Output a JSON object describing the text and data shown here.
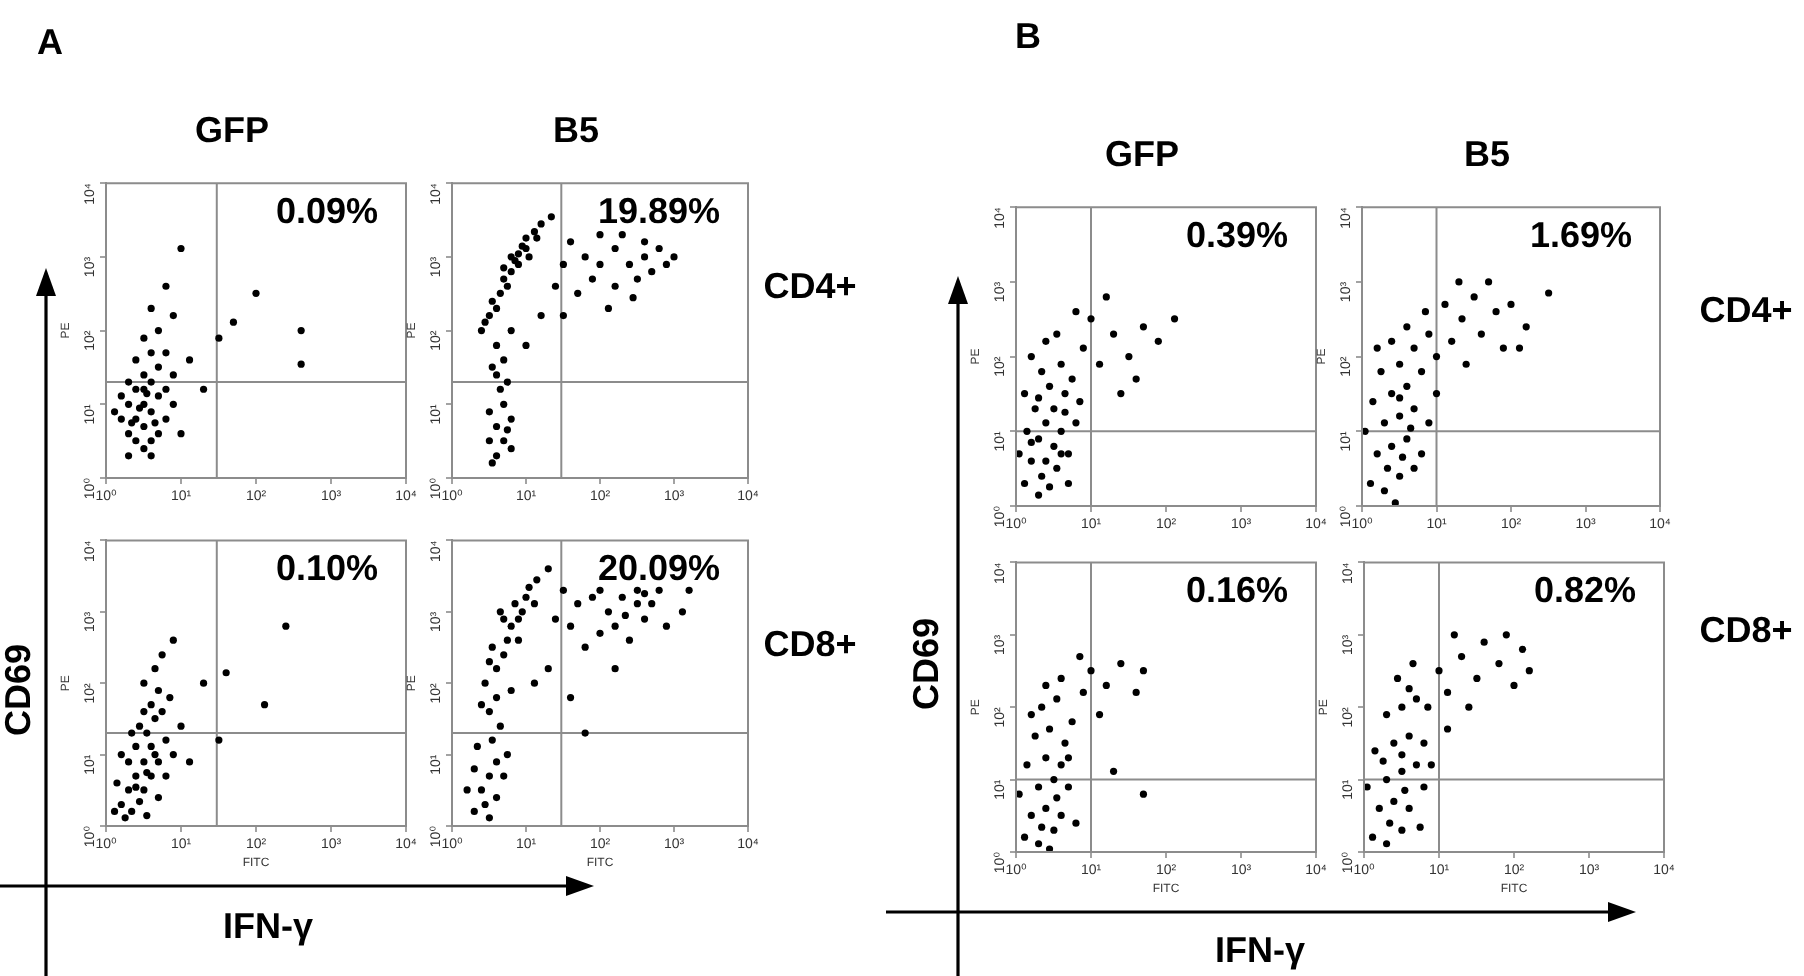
{
  "chart_data": [
    {
      "type": "scatter",
      "title": "GFP",
      "ylabel": "PE",
      "log": "xy",
      "xlim": [
        1,
        10000
      ],
      "ylim": [
        1,
        10000
      ],
      "xticks": [
        {
          "value": 1,
          "label": "10⁰"
        },
        {
          "value": 10,
          "label": "10¹"
        },
        {
          "value": 100,
          "label": "10²"
        },
        {
          "value": 1000,
          "label": "10³"
        },
        {
          "value": 10000,
          "label": "10⁴"
        }
      ],
      "yticks": [
        {
          "value": 1,
          "label": "10⁰"
        },
        {
          "value": 10,
          "label": "10¹"
        },
        {
          "value": 100,
          "label": "10²"
        },
        {
          "value": 1000,
          "label": "10³"
        },
        {
          "value": 10000,
          "label": "10⁴"
        }
      ],
      "marker": "circle",
      "color": "#000000",
      "ref_lines": [
        {
          "axis": "x",
          "value": 30,
          "color": "#8c8c8c"
        },
        {
          "axis": "y",
          "value": 20,
          "color": "#8c8c8c"
        }
      ],
      "annotations": [
        "0.09%",
        "A"
      ],
      "x": [
        2,
        2.5,
        3.2,
        4,
        5,
        2.5,
        3.2,
        2,
        4,
        6.3,
        1.6,
        3.2,
        5,
        2.5,
        4,
        2,
        3.2,
        6.3,
        7.9,
        1.3,
        1.6,
        5,
        2.5,
        4,
        3.2,
        5,
        6.3,
        2,
        4,
        7.9,
        2.8,
        3.5,
        2.2,
        4.5,
        3.2,
        4,
        7.9,
        10,
        6.3,
        13,
        20,
        10,
        100,
        50,
        400,
        400,
        32
      ],
      "values": [
        4,
        6.3,
        10,
        7.9,
        13,
        16,
        5,
        10,
        20,
        6.3,
        6.3,
        2.5,
        4,
        3.2,
        3.2,
        20,
        25,
        16,
        10,
        7.9,
        13,
        32,
        40,
        50,
        79,
        100,
        50,
        2,
        2,
        25,
        8.9,
        14,
        5.6,
        5.6,
        16,
        200,
        160,
        1300,
        400,
        40,
        16,
        4,
        320,
        130,
        100,
        35,
        79
      ]
    },
    {
      "type": "scatter",
      "title": "B5",
      "ylabel": "PE",
      "log": "xy",
      "xlim": [
        1,
        10000
      ],
      "ylim": [
        1,
        10000
      ],
      "xticks": [
        {
          "value": 1,
          "label": "10⁰"
        },
        {
          "value": 10,
          "label": "10¹"
        },
        {
          "value": 100,
          "label": "10²"
        },
        {
          "value": 1000,
          "label": "10³"
        },
        {
          "value": 10000,
          "label": "10⁴"
        }
      ],
      "yticks": [
        {
          "value": 1,
          "label": "10⁰"
        },
        {
          "value": 10,
          "label": "10¹"
        },
        {
          "value": 100,
          "label": "10²"
        },
        {
          "value": 1000,
          "label": "10³"
        },
        {
          "value": 10000,
          "label": "10⁴"
        }
      ],
      "marker": "circle",
      "color": "#000000",
      "ref_lines": [
        {
          "axis": "x",
          "value": 30,
          "color": "#8c8c8c"
        },
        {
          "axis": "y",
          "value": 20,
          "color": "#8c8c8c"
        }
      ],
      "annotations": [
        "19.89%",
        "CD4+"
      ],
      "x": [
        4,
        5,
        3.2,
        6.3,
        4,
        5,
        3.2,
        6.3,
        4.5,
        3.5,
        5.6,
        4,
        5,
        4,
        6.3,
        3.5,
        5.6,
        2.5,
        3.2,
        3.5,
        4.5,
        5,
        6.3,
        7.1,
        7.9,
        8.9,
        10,
        13,
        16,
        22,
        5.6,
        7.9,
        10,
        4,
        2.8,
        11,
        6.3,
        14,
        5,
        40,
        63,
        100,
        160,
        250,
        400,
        630,
        320,
        160,
        79,
        500,
        790,
        50,
        200,
        100,
        32,
        280,
        130,
        25,
        400,
        1000,
        16,
        10,
        32
      ],
      "values": [
        5,
        3.2,
        7.9,
        6.3,
        2,
        10,
        3.2,
        2.5,
        16,
        1.6,
        4.5,
        25,
        40,
        63,
        100,
        32,
        20,
        100,
        160,
        250,
        320,
        500,
        630,
        890,
        1100,
        1400,
        1800,
        2200,
        2800,
        3500,
        400,
        790,
        1300,
        200,
        130,
        1000,
        1000,
        1800,
        710,
        1600,
        1000,
        790,
        1300,
        790,
        1000,
        1300,
        500,
        400,
        500,
        630,
        790,
        320,
        2000,
        2000,
        790,
        280,
        200,
        400,
        1600,
        1000,
        160,
        63,
        160
      ]
    },
    {
      "type": "scatter",
      "xlabel": "FITC",
      "ylabel": "PE",
      "log": "xy",
      "xlim": [
        1,
        10000
      ],
      "ylim": [
        1,
        10000
      ],
      "xticks": [
        {
          "value": 1,
          "label": "10⁰"
        },
        {
          "value": 10,
          "label": "10¹"
        },
        {
          "value": 100,
          "label": "10²"
        },
        {
          "value": 1000,
          "label": "10³"
        },
        {
          "value": 10000,
          "label": "10⁴"
        }
      ],
      "yticks": [
        {
          "value": 1,
          "label": "10⁰"
        },
        {
          "value": 10,
          "label": "10¹"
        },
        {
          "value": 100,
          "label": "10²"
        },
        {
          "value": 1000,
          "label": "10³"
        },
        {
          "value": 10000,
          "label": "10⁴"
        }
      ],
      "marker": "circle",
      "color": "#000000",
      "ref_lines": [
        {
          "axis": "x",
          "value": 30,
          "color": "#8c8c8c"
        },
        {
          "axis": "y",
          "value": 20,
          "color": "#8c8c8c"
        }
      ],
      "annotations": [
        "0.10%",
        "CD69",
        "IFN-γ"
      ],
      "x": [
        2,
        2.5,
        3.2,
        4,
        1.6,
        2.2,
        3.2,
        4,
        5,
        2.5,
        3.5,
        4.5,
        2,
        1.4,
        1.8,
        2.8,
        5,
        6.3,
        6.3,
        4,
        3.2,
        5,
        2.8,
        1.6,
        2.2,
        7.9,
        3.5,
        1.3,
        5.6,
        3.2,
        4.5,
        5.6,
        7.1,
        2.5,
        3.5,
        4.5,
        10,
        13,
        40,
        130,
        250,
        32,
        20,
        7.9
      ],
      "values": [
        3.2,
        5,
        7.9,
        13,
        2,
        1.6,
        3.2,
        5,
        7.9,
        13,
        20,
        32,
        7.9,
        4,
        1.3,
        2.2,
        2.5,
        5,
        16,
        50,
        40,
        79,
        25,
        10,
        20,
        10,
        1.4,
        1.6,
        40,
        100,
        160,
        250,
        63,
        3.5,
        5.6,
        10,
        25,
        7.9,
        140,
        50,
        630,
        16,
        100,
        400
      ]
    },
    {
      "type": "scatter",
      "xlabel": "FITC",
      "ylabel": "PE",
      "log": "xy",
      "xlim": [
        1,
        10000
      ],
      "ylim": [
        1,
        10000
      ],
      "xticks": [
        {
          "value": 1,
          "label": "10⁰"
        },
        {
          "value": 10,
          "label": "10¹"
        },
        {
          "value": 100,
          "label": "10²"
        },
        {
          "value": 1000,
          "label": "10³"
        },
        {
          "value": 10000,
          "label": "10⁴"
        }
      ],
      "yticks": [
        {
          "value": 1,
          "label": "10⁰"
        },
        {
          "value": 10,
          "label": "10¹"
        },
        {
          "value": 100,
          "label": "10²"
        },
        {
          "value": 1000,
          "label": "10³"
        },
        {
          "value": 10000,
          "label": "10⁴"
        }
      ],
      "marker": "circle",
      "color": "#000000",
      "ref_lines": [
        {
          "axis": "x",
          "value": 30,
          "color": "#8c8c8c"
        },
        {
          "axis": "y",
          "value": 20,
          "color": "#8c8c8c"
        }
      ],
      "annotations": [
        "20.09%",
        "CD8+"
      ],
      "x": [
        2.5,
        3.2,
        4,
        2,
        2.8,
        4,
        2.2,
        3.5,
        5,
        1.6,
        3.2,
        5.6,
        2,
        4.5,
        3.2,
        4,
        2.8,
        4,
        5,
        3.5,
        5.6,
        6.3,
        7.9,
        7.1,
        10,
        11,
        14,
        20,
        8.9,
        5,
        6.3,
        2.5,
        4.5,
        13,
        7.9,
        3.2,
        32,
        50,
        79,
        130,
        200,
        320,
        400,
        500,
        630,
        320,
        160,
        100,
        63,
        250,
        790,
        1300,
        40,
        400,
        220,
        25,
        1600,
        100,
        20,
        40,
        63,
        13,
        160
      ],
      "values": [
        3.2,
        5,
        7.9,
        6.3,
        2,
        2.5,
        13,
        16,
        5,
        3.2,
        1.3,
        10,
        1.6,
        25,
        40,
        63,
        100,
        160,
        250,
        320,
        400,
        630,
        790,
        1300,
        1600,
        2200,
        2800,
        4000,
        1000,
        790,
        79,
        50,
        1000,
        1300,
        400,
        200,
        2000,
        1300,
        1600,
        1000,
        1600,
        1300,
        790,
        1300,
        2000,
        2000,
        630,
        500,
        320,
        400,
        630,
        1000,
        630,
        1800,
        890,
        790,
        2000,
        2000,
        160,
        63,
        20,
        100,
        160
      ]
    },
    {
      "type": "scatter",
      "title": "GFP",
      "ylabel": "PE",
      "log": "xy",
      "xlim": [
        1,
        10000
      ],
      "ylim": [
        1,
        10000
      ],
      "xticks": [
        {
          "value": 1,
          "label": "10⁰"
        },
        {
          "value": 10,
          "label": "10¹"
        },
        {
          "value": 100,
          "label": "10²"
        },
        {
          "value": 1000,
          "label": "10³"
        },
        {
          "value": 10000,
          "label": "10⁴"
        }
      ],
      "yticks": [
        {
          "value": 1,
          "label": "10⁰"
        },
        {
          "value": 10,
          "label": "10¹"
        },
        {
          "value": 100,
          "label": "10²"
        },
        {
          "value": 1000,
          "label": "10³"
        },
        {
          "value": 10000,
          "label": "10⁴"
        }
      ],
      "marker": "circle",
      "color": "#000000",
      "ref_lines": [
        {
          "axis": "x",
          "value": 10,
          "color": "#8c8c8c"
        },
        {
          "axis": "y",
          "value": 10,
          "color": "#8c8c8c"
        }
      ],
      "annotations": [
        "0.39%",
        "B"
      ],
      "x": [
        1.3,
        1.6,
        2,
        2.5,
        3.2,
        4,
        5,
        2.2,
        3.5,
        1.4,
        1.8,
        2.8,
        4.5,
        6.3,
        2,
        3.2,
        1.3,
        2.2,
        4,
        5.6,
        1.6,
        2.5,
        3.5,
        5,
        1.1,
        7.1,
        2.8,
        2,
        4,
        1.6,
        2.5,
        4.5,
        7.9,
        10,
        13,
        20,
        32,
        50,
        79,
        40,
        130,
        16,
        6.3,
        25
      ],
      "values": [
        2,
        4,
        7.9,
        13,
        20,
        10,
        5,
        2.5,
        3.2,
        10,
        20,
        40,
        32,
        13,
        1.4,
        6.3,
        32,
        63,
        79,
        50,
        100,
        160,
        200,
        2,
        5,
        25,
        1.8,
        28,
        5,
        7.1,
        4,
        18,
        130,
        320,
        79,
        200,
        100,
        250,
        160,
        50,
        320,
        630,
        400,
        32
      ]
    },
    {
      "type": "scatter",
      "title": "B5",
      "ylabel": "PE",
      "log": "xy",
      "xlim": [
        1,
        10000
      ],
      "ylim": [
        1,
        10000
      ],
      "xticks": [
        {
          "value": 1,
          "label": "10⁰"
        },
        {
          "value": 10,
          "label": "10¹"
        },
        {
          "value": 100,
          "label": "10²"
        },
        {
          "value": 1000,
          "label": "10³"
        },
        {
          "value": 10000,
          "label": "10⁴"
        }
      ],
      "yticks": [
        {
          "value": 1,
          "label": "10⁰"
        },
        {
          "value": 10,
          "label": "10¹"
        },
        {
          "value": 100,
          "label": "10²"
        },
        {
          "value": 1000,
          "label": "10³"
        },
        {
          "value": 10000,
          "label": "10⁴"
        }
      ],
      "marker": "circle",
      "color": "#000000",
      "ref_lines": [
        {
          "axis": "x",
          "value": 10,
          "color": "#8c8c8c"
        },
        {
          "axis": "y",
          "value": 10,
          "color": "#8c8c8c"
        }
      ],
      "annotations": [
        "1.69%",
        "CD4+"
      ],
      "x": [
        1.3,
        2,
        3.2,
        1.6,
        2.5,
        4,
        6.3,
        2,
        3.2,
        5,
        7.9,
        1.4,
        2.5,
        4,
        6.3,
        1.8,
        3.2,
        5,
        7.9,
        2.5,
        4,
        10,
        1.1,
        5,
        2.8,
        7.1,
        2.2,
        3.5,
        4.5,
        1.6,
        10,
        3.2,
        13,
        16,
        22,
        32,
        40,
        63,
        79,
        100,
        160,
        25,
        50,
        320,
        130,
        20
      ],
      "values": [
        2,
        1.6,
        2.5,
        5,
        6.3,
        7.9,
        5,
        13,
        16,
        20,
        13,
        25,
        32,
        40,
        63,
        63,
        79,
        130,
        200,
        160,
        250,
        32,
        10,
        3.2,
        1.1,
        400,
        3.2,
        4.5,
        11,
        130,
        100,
        28,
        500,
        160,
        320,
        630,
        200,
        400,
        130,
        500,
        250,
        79,
        1000,
        710,
        130,
        1000
      ]
    },
    {
      "type": "scatter",
      "xlabel": "FITC",
      "ylabel": "PE",
      "log": "xy",
      "xlim": [
        1,
        10000
      ],
      "ylim": [
        1,
        10000
      ],
      "xticks": [
        {
          "value": 1,
          "label": "10⁰"
        },
        {
          "value": 10,
          "label": "10¹"
        },
        {
          "value": 100,
          "label": "10²"
        },
        {
          "value": 1000,
          "label": "10³"
        },
        {
          "value": 10000,
          "label": "10⁴"
        }
      ],
      "yticks": [
        {
          "value": 1,
          "label": "10⁰"
        },
        {
          "value": 10,
          "label": "10¹"
        },
        {
          "value": 100,
          "label": "10²"
        },
        {
          "value": 1000,
          "label": "10³"
        },
        {
          "value": 10000,
          "label": "10⁴"
        }
      ],
      "marker": "circle",
      "color": "#000000",
      "ref_lines": [
        {
          "axis": "x",
          "value": 10,
          "color": "#8c8c8c"
        },
        {
          "axis": "y",
          "value": 10,
          "color": "#8c8c8c"
        }
      ],
      "annotations": [
        "0.16%",
        "CD69",
        "IFN-γ"
      ],
      "x": [
        1.3,
        2,
        3.2,
        1.6,
        2.5,
        4,
        5,
        2,
        3.2,
        1.4,
        2.5,
        4,
        1.8,
        2.8,
        4.5,
        2.2,
        3.5,
        5.6,
        6.3,
        1.1,
        2.8,
        1.6,
        4,
        2.2,
        3.5,
        5,
        2.5,
        7.9,
        10,
        16,
        25,
        40,
        50,
        13,
        20,
        50,
        7.1
      ],
      "values": [
        1.6,
        1.3,
        2,
        3.2,
        4,
        3.2,
        7.9,
        7.9,
        10,
        16,
        20,
        16,
        40,
        50,
        32,
        100,
        130,
        63,
        2.5,
        6.3,
        1.1,
        79,
        250,
        2.2,
        5.6,
        20,
        200,
        160,
        320,
        200,
        400,
        160,
        320,
        79,
        13,
        6.3,
        500
      ]
    },
    {
      "type": "scatter",
      "xlabel": "FITC",
      "ylabel": "PE",
      "log": "xy",
      "xlim": [
        1,
        10000
      ],
      "ylim": [
        1,
        10000
      ],
      "xticks": [
        {
          "value": 1,
          "label": "10⁰"
        },
        {
          "value": 10,
          "label": "10¹"
        },
        {
          "value": 100,
          "label": "10²"
        },
        {
          "value": 1000,
          "label": "10³"
        },
        {
          "value": 10000,
          "label": "10⁴"
        }
      ],
      "yticks": [
        {
          "value": 1,
          "label": "10⁰"
        },
        {
          "value": 10,
          "label": "10¹"
        },
        {
          "value": 100,
          "label": "10²"
        },
        {
          "value": 1000,
          "label": "10³"
        },
        {
          "value": 10000,
          "label": "10⁴"
        }
      ],
      "marker": "circle",
      "color": "#000000",
      "ref_lines": [
        {
          "axis": "x",
          "value": 10,
          "color": "#8c8c8c"
        },
        {
          "axis": "y",
          "value": 10,
          "color": "#8c8c8c"
        }
      ],
      "annotations": [
        "0.82%",
        "CD8+"
      ],
      "x": [
        1.3,
        2,
        3.2,
        1.6,
        2.5,
        4,
        6.3,
        2,
        3.2,
        5,
        1.4,
        2.5,
        4,
        6.3,
        2,
        3.2,
        5,
        2.8,
        4.5,
        7.9,
        1.1,
        5.6,
        3.5,
        2.2,
        1.8,
        7.1,
        4,
        3.2,
        10,
        13,
        20,
        32,
        40,
        63,
        100,
        130,
        16,
        25,
        79,
        160,
        13
      ],
      "values": [
        1.6,
        1.3,
        2,
        4,
        5,
        4,
        7.9,
        10,
        13,
        16,
        25,
        32,
        40,
        32,
        79,
        100,
        130,
        250,
        400,
        16,
        7.9,
        2.2,
        7.1,
        2.5,
        18,
        100,
        180,
        22,
        320,
        160,
        500,
        250,
        790,
        400,
        200,
        630,
        1000,
        100,
        1000,
        320,
        50
      ]
    }
  ]
}
